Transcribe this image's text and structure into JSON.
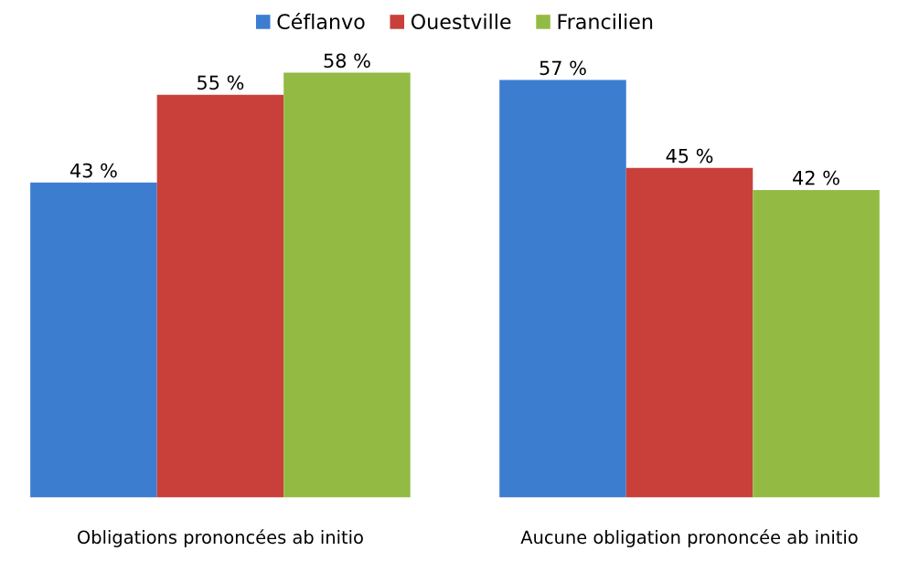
{
  "chart_data": {
    "type": "bar",
    "categories": [
      "Obligations prononcées ab initio",
      "Aucune obligation prononcée ab initio"
    ],
    "series": [
      {
        "name": "Céflanvo",
        "color": "#3c7dd0",
        "values": [
          43,
          57
        ],
        "value_labels": [
          "43 %",
          "57 %"
        ]
      },
      {
        "name": "Ouestville",
        "color": "#c9403a",
        "values": [
          55,
          45
        ],
        "value_labels": [
          "55 %",
          "45 %"
        ]
      },
      {
        "name": "Francilien",
        "color": "#93bb44",
        "values": [
          58,
          42
        ],
        "value_labels": [
          "58 %",
          "42 %"
        ]
      }
    ],
    "tick_labels": "x",
    "grid": false,
    "legend": "top"
  }
}
